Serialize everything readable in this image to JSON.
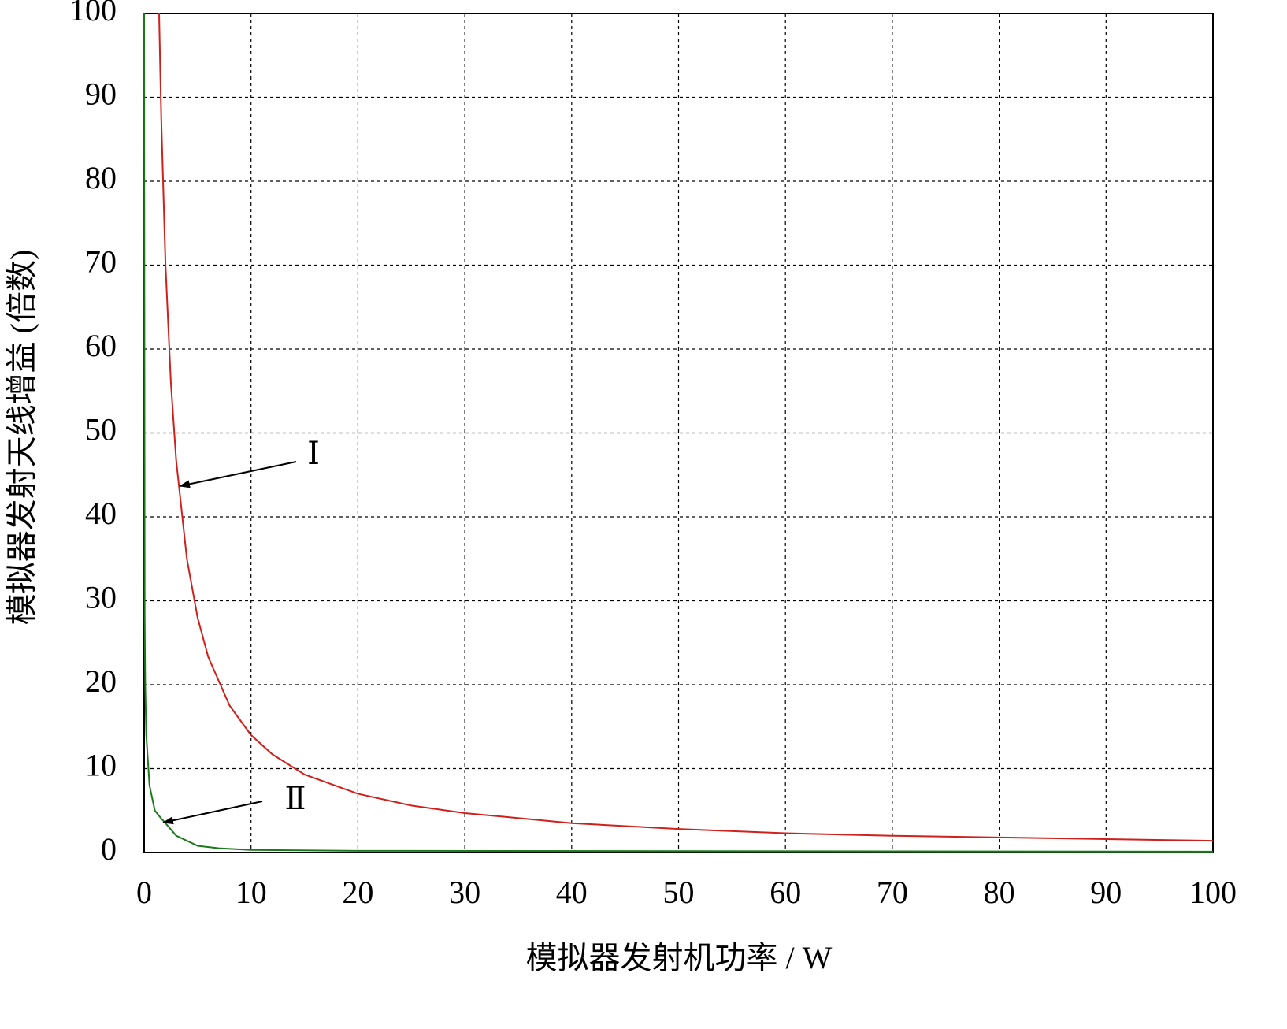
{
  "chart_data": {
    "type": "line",
    "x_label": "模拟器发射机功率 / W",
    "y_label": "模拟器发射天线增益 (倍数)",
    "xlim": [
      0,
      100
    ],
    "ylim": [
      0,
      100
    ],
    "xticks": [
      0,
      10,
      20,
      30,
      40,
      50,
      60,
      70,
      80,
      90,
      100
    ],
    "yticks": [
      0,
      10,
      20,
      30,
      40,
      50,
      60,
      70,
      80,
      90,
      100
    ],
    "grid": true,
    "annotations": [
      "Ⅰ",
      "Ⅱ"
    ],
    "series": [
      {
        "name": "Ⅰ",
        "color": "#d0201c",
        "x": [
          1.4,
          1.6,
          2,
          2.5,
          3,
          4,
          5,
          6,
          8,
          10,
          12,
          15,
          20,
          25,
          30,
          40,
          50,
          60,
          70,
          80,
          90,
          100
        ],
        "values": [
          100,
          87.5,
          70,
          56,
          46.7,
          35,
          28,
          23.3,
          17.5,
          14,
          11.7,
          9.3,
          7,
          5.6,
          4.7,
          3.5,
          2.8,
          2.3,
          2,
          1.8,
          1.6,
          1.4
        ]
      },
      {
        "name": "Ⅱ",
        "color": "#1a7a1a",
        "x": [
          0,
          0.05,
          0.1,
          0.2,
          0.5,
          1,
          1.5,
          2,
          3,
          5,
          7,
          10,
          20,
          100
        ],
        "values": [
          100,
          28,
          20,
          14,
          8,
          5,
          4.2,
          3.5,
          2,
          0.8,
          0.5,
          0.3,
          0.2,
          0.1
        ]
      }
    ]
  }
}
